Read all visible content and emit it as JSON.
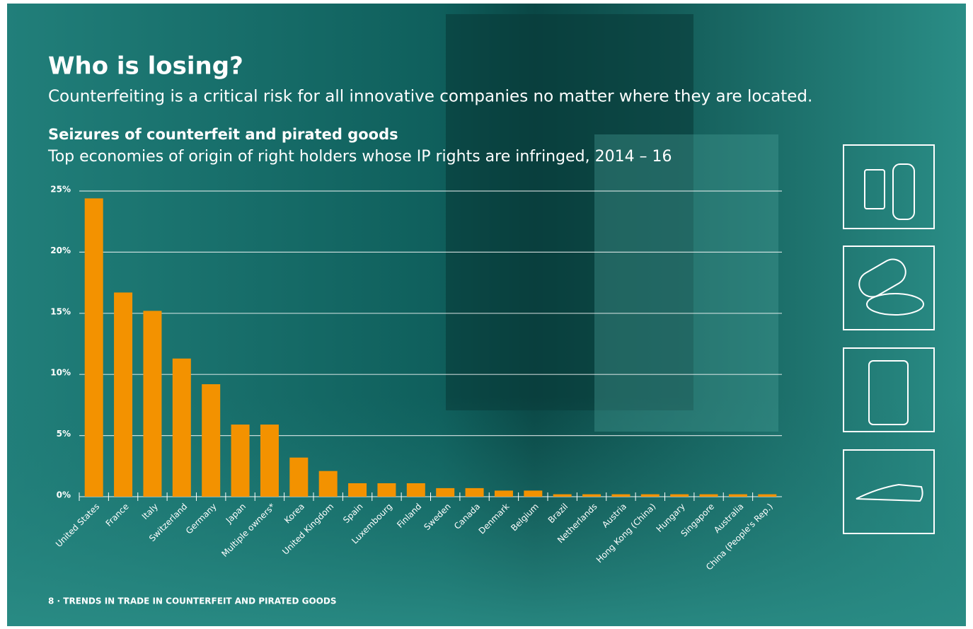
{
  "chart_data": {
    "type": "bar",
    "title": "Who is losing?",
    "subtitle": "Counterfeiting is a critical risk for all innovative companies no matter where they are located.",
    "chart_title": "Seizures of counterfeit and pirated goods",
    "chart_subtitle": "Top economies of origin of right holders whose IP rights are infringed, 2014 – 16",
    "footer": "8 · TRENDS IN TRADE IN COUNTERFEIT AND PIRATED GOODS",
    "categories": [
      "United States",
      "France",
      "Italy",
      "Switzerland",
      "Germany",
      "Japan",
      "Multiple owners*",
      "Korea",
      "United Kingdom",
      "Spain",
      "Luxembourg",
      "Finland",
      "Sweden",
      "Canada",
      "Denmark",
      "Belgium",
      "Brazil",
      "Netherlands",
      "Austria",
      "Hong Kong (China)",
      "Hungary",
      "Singapore",
      "Australia",
      "China (People's Rep.)"
    ],
    "values": [
      24.4,
      16.7,
      15.2,
      11.3,
      9.2,
      5.9,
      5.9,
      3.2,
      2.1,
      1.1,
      1.1,
      1.1,
      0.7,
      0.7,
      0.5,
      0.5,
      0.2,
      0.2,
      0.2,
      0.2,
      0.2,
      0.2,
      0.2,
      0.2
    ],
    "color": "#f39200",
    "ylim": [
      0,
      25
    ],
    "yticks": [
      {
        "value": 0,
        "label": "0%"
      },
      {
        "value": 5,
        "label": "5%"
      },
      {
        "value": 10,
        "label": "10%"
      },
      {
        "value": 15,
        "label": "15%"
      },
      {
        "value": 20,
        "label": "20%"
      },
      {
        "value": 25,
        "label": "25%"
      }
    ],
    "grid": true
  }
}
